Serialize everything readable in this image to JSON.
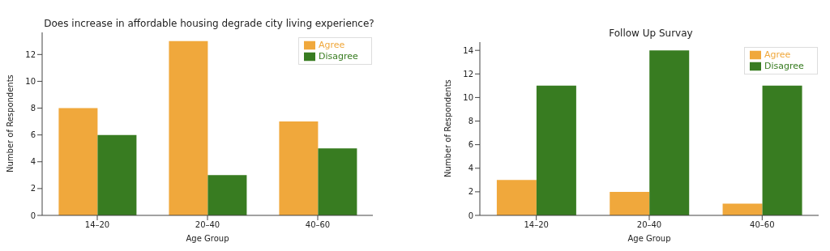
{
  "chart_data": [
    {
      "type": "bar",
      "title": "Does increase in affordable housing degrade city living experience?",
      "xlabel": "Age Group",
      "ylabel": "Number of Respondents",
      "categories": [
        "14–20",
        "20–40",
        "40–60"
      ],
      "series": [
        {
          "name": "Agree",
          "color": "#f0a83c",
          "values": [
            8,
            13,
            7
          ]
        },
        {
          "name": "Disagree",
          "color": "#387c21",
          "values": [
            6,
            3,
            5
          ]
        }
      ],
      "ylim": [
        0,
        13.65
      ],
      "yticks": [
        0,
        2,
        4,
        6,
        8,
        10,
        12
      ],
      "grid": false,
      "legend": "top right"
    },
    {
      "type": "bar",
      "title": "Follow Up Survay",
      "xlabel": "Age Group",
      "ylabel": "Number of Respondents",
      "categories": [
        "14–20",
        "20–40",
        "40–60"
      ],
      "series": [
        {
          "name": "Agree",
          "color": "#f0a83c",
          "values": [
            3,
            2,
            1
          ]
        },
        {
          "name": "Disagree",
          "color": "#387c21",
          "values": [
            11,
            14,
            11
          ]
        }
      ],
      "ylim": [
        0,
        14.7
      ],
      "yticks": [
        0,
        2,
        4,
        6,
        8,
        10,
        12,
        14
      ],
      "grid": false,
      "legend": "top right"
    }
  ]
}
